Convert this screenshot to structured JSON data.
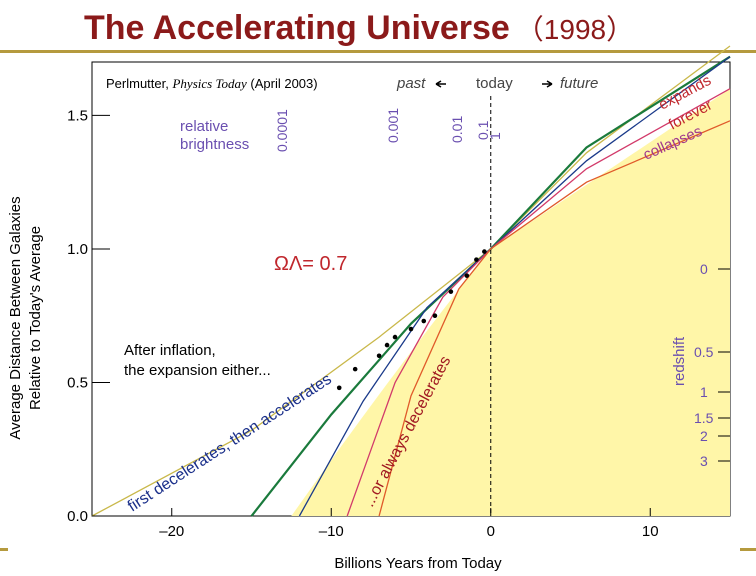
{
  "slide": {
    "title": "The Accelerating Universe",
    "year": "（1998）",
    "accent_color": "#8b1a1a",
    "rule_color": "#b59a3e"
  },
  "figure": {
    "credit_author": "Perlmutter,",
    "credit_journal": "Physics Today",
    "credit_date": "(April 2003)",
    "past_label": "past",
    "today_label": "today",
    "future_label": "future",
    "relative_brightness": [
      "relative",
      "brightness"
    ],
    "brightness_ticks": [
      "0.0001",
      "0.001",
      "0.01",
      "0.1",
      "1"
    ],
    "omega_label": "ΩΛ= 0.7",
    "fate_labels": {
      "expands": "expands",
      "forever": "forever",
      "collapses": "collapses"
    },
    "caption_lines": [
      "After inflation,",
      "the expansion either..."
    ],
    "curve_label_accelerates": "first decelerates, then accelerates",
    "curve_label_decelerates": "...or always decelerates",
    "redshift_label": "redshift",
    "redshift_ticks": [
      "0",
      "0.5",
      "1",
      "1.5",
      "2",
      "3"
    ],
    "shade_color": "#fff6a8"
  },
  "chart_data": {
    "type": "line",
    "xlabel": "Billions Years from Today",
    "ylabel_line1": "Average Distance Between Galaxies",
    "ylabel_line2": "Relative to Today's Average",
    "xlim": [
      -25,
      15
    ],
    "ylim": [
      0.0,
      1.7
    ],
    "x_ticks": [
      "–20",
      "–10",
      "0",
      "10"
    ],
    "y_ticks": [
      "0.0",
      "0.5",
      "1.0",
      "1.5"
    ],
    "series": [
      {
        "color": "#c9b84a",
        "values": [
          [
            -25,
            0.0
          ],
          [
            -15,
            0.32
          ],
          [
            -7,
            0.67
          ],
          [
            0,
            1.0
          ],
          [
            6,
            1.36
          ],
          [
            15,
            1.76
          ]
        ]
      },
      {
        "color": "#1a7a3c",
        "values": [
          [
            -15,
            0.0
          ],
          [
            -10,
            0.38
          ],
          [
            -5,
            0.72
          ],
          [
            0,
            1.0
          ],
          [
            6,
            1.38
          ],
          [
            15,
            1.72
          ]
        ]
      },
      {
        "color": "#1a3a8a",
        "values": [
          [
            -12,
            0.0
          ],
          [
            -8,
            0.43
          ],
          [
            -4,
            0.78
          ],
          [
            0,
            1.0
          ],
          [
            6,
            1.33
          ],
          [
            15,
            1.72
          ]
        ]
      },
      {
        "color": "#d23a6a",
        "values": [
          [
            -9,
            0.0
          ],
          [
            -6,
            0.5
          ],
          [
            -3,
            0.82
          ],
          [
            0,
            1.0
          ],
          [
            6,
            1.3
          ],
          [
            15,
            1.6
          ]
        ]
      },
      {
        "color": "#e05a2a",
        "values": [
          [
            -7,
            0.0
          ],
          [
            -5,
            0.45
          ],
          [
            -2,
            0.85
          ],
          [
            0,
            1.0
          ],
          [
            6,
            1.25
          ],
          [
            15,
            1.48
          ]
        ]
      }
    ],
    "points": [
      [
        -9.5,
        0.48
      ],
      [
        -8.5,
        0.55
      ],
      [
        -7,
        0.6
      ],
      [
        -6.5,
        0.64
      ],
      [
        -6,
        0.67
      ],
      [
        -5,
        0.7
      ],
      [
        -4.2,
        0.73
      ],
      [
        -3.5,
        0.75
      ],
      [
        -2.5,
        0.84
      ],
      [
        -1.5,
        0.9
      ],
      [
        -0.9,
        0.96
      ],
      [
        -0.4,
        0.99
      ]
    ]
  }
}
